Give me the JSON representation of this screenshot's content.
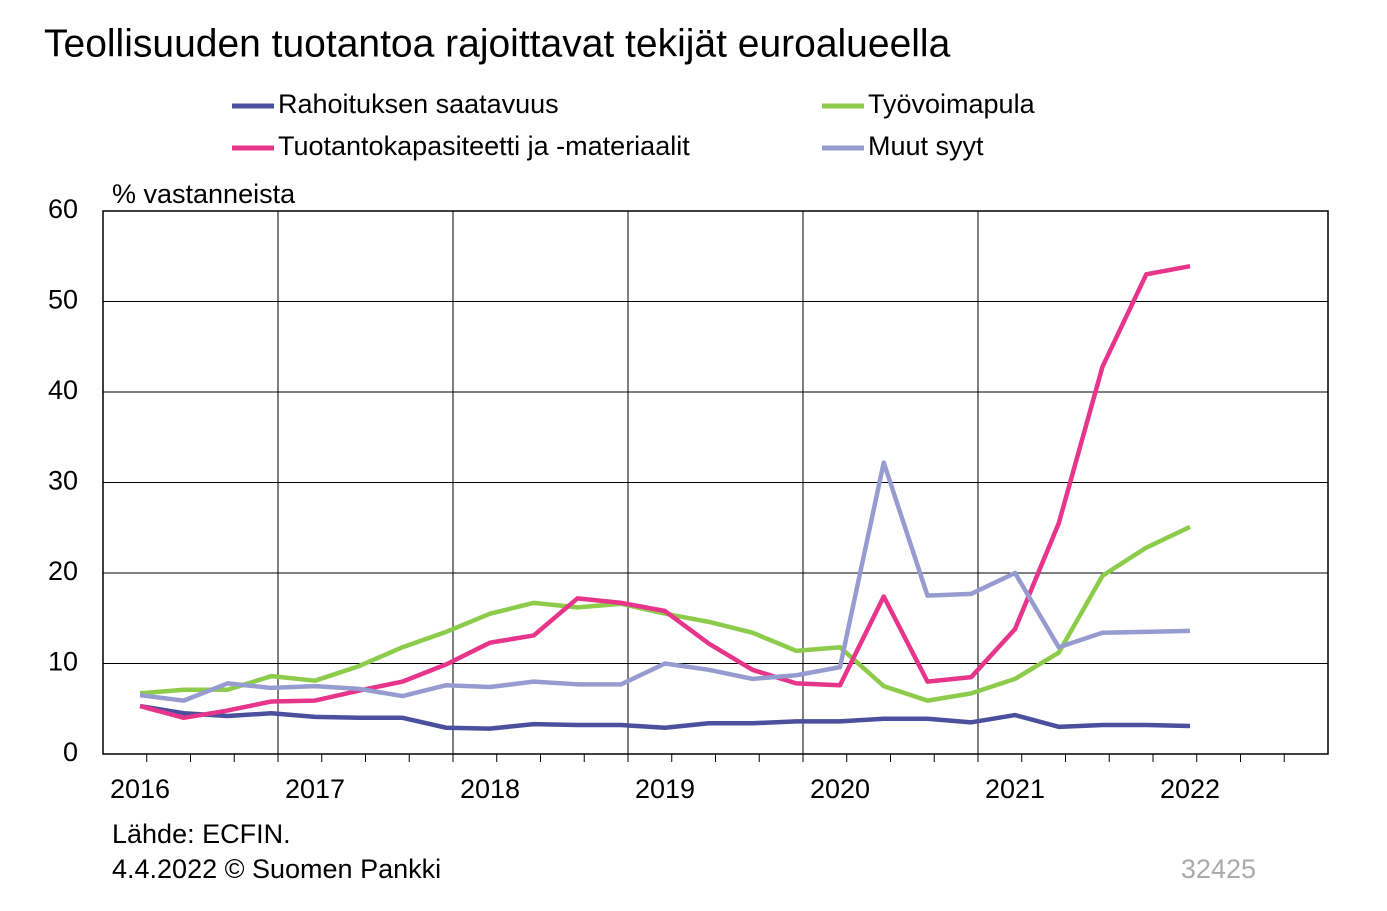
{
  "chart_data": {
    "type": "line",
    "title": "Teollisuuden tuotantoa rajoittavat tekijät euroalueella",
    "y_label": "% vastanneista",
    "source": "Lähde: ECFIN.",
    "date_credit": "4.4.2022 © Suomen Pankki",
    "code": "32425",
    "categories": [
      "2016",
      null,
      null,
      null,
      "2017",
      null,
      null,
      null,
      "2018",
      null,
      null,
      null,
      "2019",
      null,
      null,
      null,
      "2020",
      null,
      null,
      null,
      "2021",
      null,
      null,
      null,
      "2022"
    ],
    "series": [
      {
        "name": "Rahoituksen saatavuus",
        "color": "#4a4f9e",
        "values": [
          5.3,
          4.5,
          4.2,
          4.5,
          4.1,
          4.0,
          4.0,
          2.9,
          2.8,
          3.3,
          3.2,
          3.2,
          2.9,
          3.4,
          3.4,
          3.6,
          3.6,
          3.9,
          3.9,
          3.5,
          4.3,
          3.0,
          3.2,
          3.2,
          3.1
        ]
      },
      {
        "name": "Työvoimapula",
        "color": "#8ccc4a",
        "values": [
          6.7,
          7.1,
          7.1,
          8.6,
          8.1,
          9.7,
          11.8,
          13.5,
          15.5,
          16.7,
          16.2,
          16.6,
          15.5,
          14.6,
          13.4,
          11.4,
          11.8,
          7.5,
          5.9,
          6.7,
          8.3,
          11.2,
          19.7,
          22.8,
          25.1
        ]
      },
      {
        "name": "Tuotantokapasiteetti ja -materiaalit",
        "color": "#e6358a",
        "values": [
          5.3,
          4.0,
          4.8,
          5.8,
          5.9,
          7.0,
          8.0,
          9.9,
          12.3,
          13.1,
          17.2,
          16.7,
          15.8,
          12.2,
          9.3,
          7.8,
          7.6,
          17.4,
          8.0,
          8.5,
          13.8,
          25.5,
          42.8,
          53.0,
          53.9
        ]
      },
      {
        "name": "Muut syyt",
        "color": "#979cd0",
        "values": [
          6.5,
          5.9,
          7.8,
          7.3,
          7.5,
          7.2,
          6.4,
          7.6,
          7.4,
          8.0,
          7.7,
          7.7,
          10.0,
          9.3,
          8.3,
          8.7,
          9.6,
          32.2,
          17.5,
          17.7,
          20.0,
          11.8,
          13.4,
          13.5,
          13.6
        ]
      }
    ],
    "ylim": [
      0,
      60
    ],
    "yticks": [
      0,
      10,
      20,
      30,
      40,
      50,
      60
    ],
    "grid": true
  }
}
